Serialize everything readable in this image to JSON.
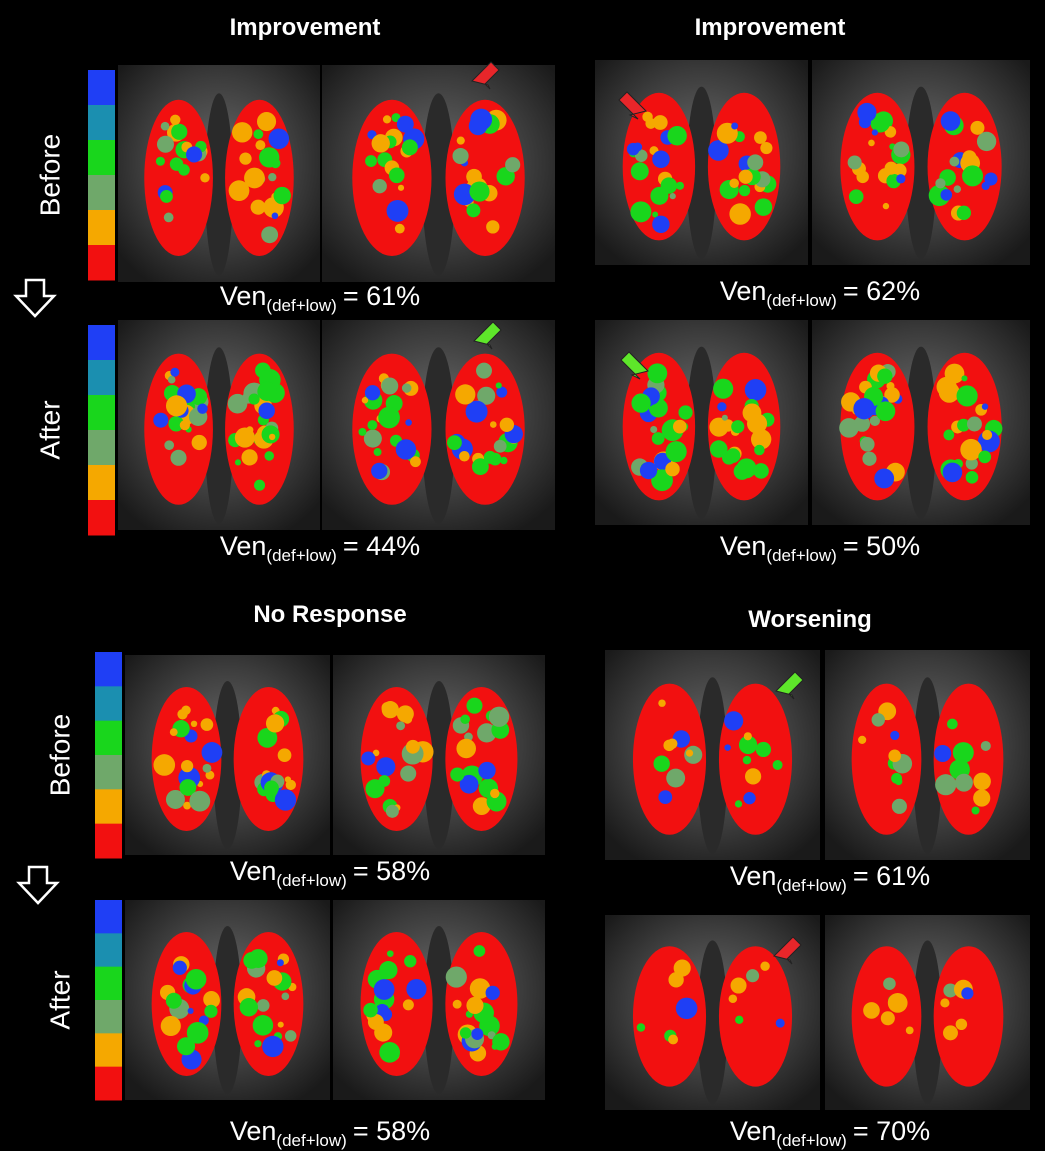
{
  "panels": [
    {
      "title": "Improvement",
      "before": {
        "main": "Ven",
        "sub": "(def+low)",
        "rest": "= 61%"
      },
      "after": {
        "main": "Ven",
        "sub": "(def+low)",
        "rest": "= 44%"
      }
    },
    {
      "title": "Improvement",
      "before": {
        "main": "Ven",
        "sub": "(def+low)",
        "rest": "= 62%"
      },
      "after": {
        "main": "Ven",
        "sub": "(def+low)",
        "rest": "= 50%"
      }
    },
    {
      "title": "No Response",
      "before": {
        "main": "Ven",
        "sub": "(def+low)",
        "rest": "= 58%"
      },
      "after": {
        "main": "Ven",
        "sub": "(def+low)",
        "rest": "= 58%"
      }
    },
    {
      "title": "Worsening",
      "before": {
        "main": "Ven",
        "sub": "(def+low)",
        "rest": "= 61%"
      },
      "after": {
        "main": "Ven",
        "sub": "(def+low)",
        "rest": "= 70%"
      }
    }
  ],
  "side_labels": [
    {
      "before": "Before",
      "after": "After"
    },
    {
      "before": "Before",
      "after": "After"
    }
  ]
}
